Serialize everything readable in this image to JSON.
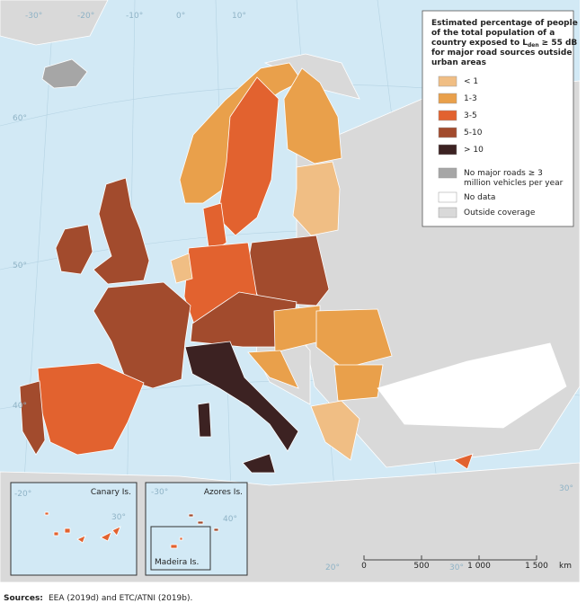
{
  "legend": {
    "title": {
      "lines_before": [
        "Estimated percentage of people",
        "of the total population of a"
      ],
      "line3": [
        "country exposed to L",
        "den",
        "≥ 55 dB"
      ],
      "lines_after": [
        "for major road sources outside",
        "urban areas"
      ]
    },
    "items": [
      {
        "label": [
          "< 1"
        ],
        "color": "#f0be84"
      },
      {
        "label": [
          "1-3"
        ],
        "color": "#e9a04b"
      },
      {
        "label": [
          "3-5"
        ],
        "color": "#e2622f"
      },
      {
        "label": [
          "5-10"
        ],
        "color": "#a24b2d"
      },
      {
        "label": [
          "> 10"
        ],
        "color": "#3c2222"
      },
      {
        "label": [
          "No major roads ≥ 3",
          "million vehicles per year"
        ],
        "color": "#a6a6a6"
      },
      {
        "label": [
          "No data"
        ],
        "color": "#ffffff"
      },
      {
        "label": [
          "Outside coverage"
        ],
        "color": "#d9d9d9"
      }
    ]
  },
  "graticule_labels": [
    "-30°",
    "-20°",
    "-10°",
    "0°",
    "10°",
    "60°",
    "50°",
    "40°",
    "20°",
    "30°",
    "30°"
  ],
  "insets": {
    "canary": {
      "label": "Canary Is.",
      "graticule": [
        "-20°",
        "30°"
      ]
    },
    "azores": {
      "label": "Azores Is.",
      "graticule": [
        "-30°",
        "40°"
      ]
    },
    "madeira": {
      "label": "Madeira Is."
    }
  },
  "scale_bar": [
    "0",
    "500",
    "1 000",
    "1 500",
    "km"
  ],
  "sources": {
    "label": "Sources:",
    "text": "EEA (2019d) and ETC/ATNI (2019b)."
  }
}
